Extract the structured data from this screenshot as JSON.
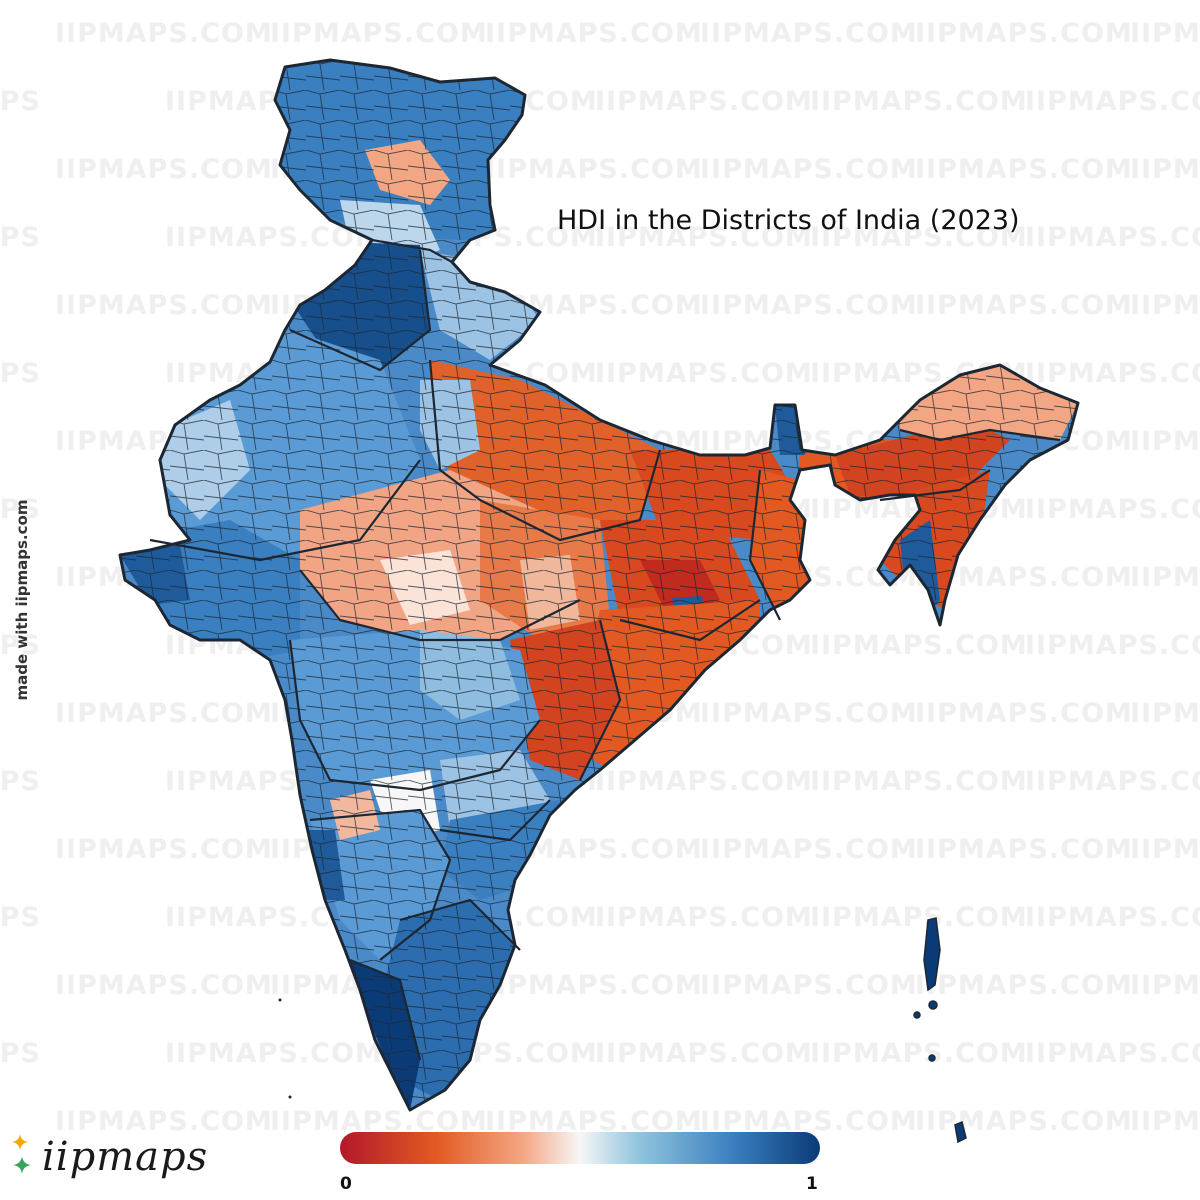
{
  "title": "HDI in the Districts of India (2023)",
  "credit": "made with iipmaps.com",
  "logo": {
    "text": "iipmaps",
    "icon": "sparkle-icon"
  },
  "watermark": {
    "text": "IIPMAPS.COM",
    "short_text": "MAPS"
  },
  "legend": {
    "min_label": "0",
    "max_label": "1",
    "colors": [
      "#b2182b",
      "#e25a22",
      "#f3a683",
      "#f7f7f7",
      "#92c5de",
      "#3a7fc0",
      "#0b3b76"
    ]
  },
  "colors": {
    "border": "#1c2733",
    "background": "#ffffff"
  }
}
